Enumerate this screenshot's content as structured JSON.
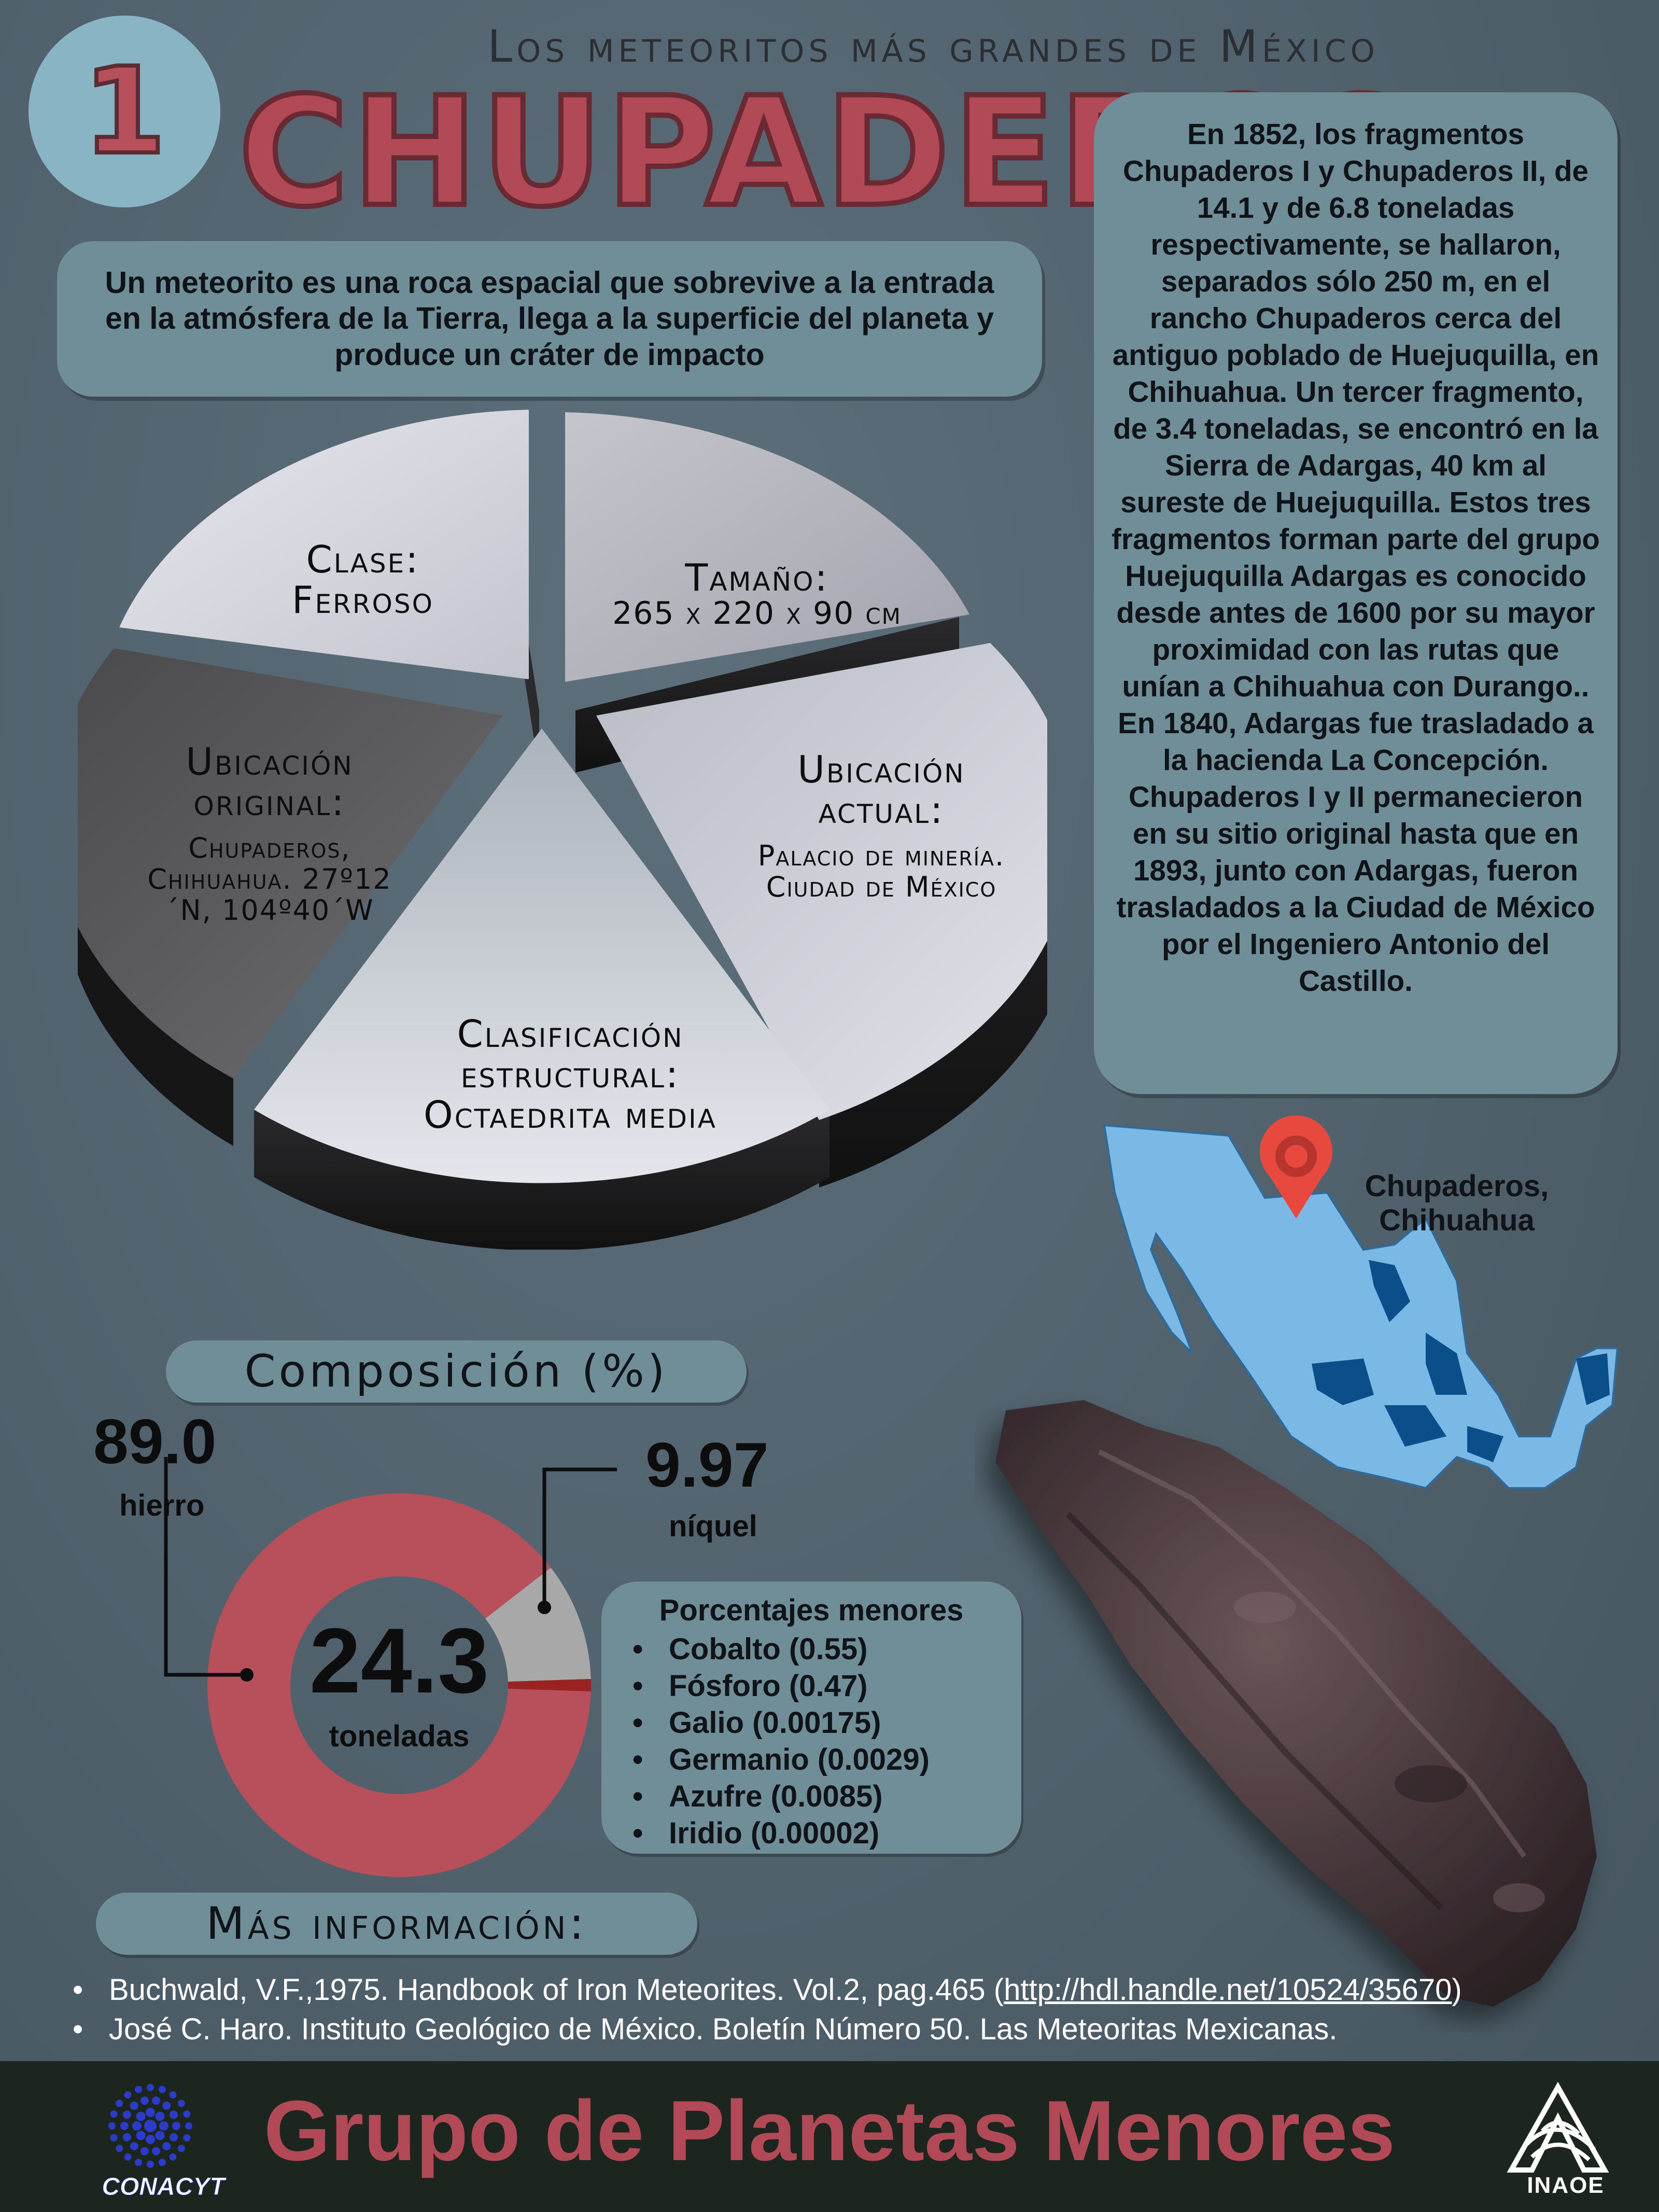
{
  "header": {
    "subtitle": "Los meteoritos más grandes de México",
    "rank": "1",
    "title": "CHUPADEROS"
  },
  "definition": "Un meteorito es una roca espacial que sobrevive a la entrada en la atmósfera de la Tierra, llega a la superficie del planeta y produce un cráter de impacto",
  "history": "En 1852, los fragmentos Chupaderos I y Chupaderos II, de 14.1 y de 6.8 toneladas respectivamente, se hallaron, separados sólo 250 m, en el rancho Chupaderos cerca del antiguo poblado de Huejuquilla, en Chihuahua. Un tercer fragmento, de 3.4 toneladas, se encontró en la Sierra de Adargas, 40 km al sureste de Huejuquilla. Estos tres fragmentos forman parte del grupo Huejuquilla Adargas es conocido desde antes de 1600 por su mayor proximidad con las rutas que unían a Chihuahua con Durango.. En 1840, Adargas fue trasladado a la hacienda La Concepción. Chupaderos I y II permanecieron en su sitio original hasta que en 1893, junto con Adargas, fueron trasladados a la Ciudad de México por el Ingeniero Antonio del Castillo.",
  "facts": {
    "clase": {
      "heading": "Clase:",
      "value": "Ferroso"
    },
    "tamano": {
      "heading": "Tamaño:",
      "value": "265 x 220 x 90 cm"
    },
    "ubicacion_actual": {
      "heading": "Ubicación actual:",
      "value": "Palacio de minería. Ciudad de México"
    },
    "clasificacion": {
      "heading": "Clasificación estructural:",
      "value": "Octaedrita media"
    },
    "ubicacion_original": {
      "heading": "Ubicación original:",
      "value": "Chupaderos, Chihuahua. 27º12´N, 104º40´W"
    }
  },
  "map": {
    "label": "Chupaderos, Chihuahua",
    "colors": {
      "land": "#7ab8e6",
      "highlight": "#0b4f8a",
      "pin": "#e8493f"
    }
  },
  "composition": {
    "title": "Composición (%)",
    "iron": {
      "value": "89.0",
      "label": "hierro"
    },
    "nickel": {
      "value": "9.97",
      "label": "níquel"
    },
    "mass": {
      "value": "24.3",
      "label": "toneladas"
    },
    "colors": {
      "iron": "#b8505c",
      "nickel": "#a8a8a8",
      "minor": "#9b2222"
    }
  },
  "chart_data": {
    "type": "pie",
    "categories": [
      "hierro",
      "níquel",
      ""
    ],
    "values": [
      89.0,
      9.97,
      1.03
    ],
    "title": "Composición (%)"
  },
  "minor": {
    "title": "Porcentajes menores",
    "items": [
      "Cobalto (0.55)",
      "Fósforo (0.47)",
      "Galio (0.00175)",
      "Germanio (0.0029)",
      "Azufre (0.0085)",
      "Iridio (0.00002)"
    ]
  },
  "more_info": {
    "title": "Más información:",
    "refs": [
      {
        "text": "Buchwald, V.F.,1975. Handbook of Iron Meteorites. Vol.2, pag.465 (",
        "url": "http://hdl.handle.net/10524/35670",
        "tail": ")"
      },
      {
        "text": "José C. Haro. Instituto Geológico de México. Boletín Número 50. Las Meteoritas Mexicanas.",
        "url": "",
        "tail": ""
      }
    ]
  },
  "footer": {
    "title": "Grupo de Planetas Menores",
    "conacyt": "CONACYT",
    "inaoe": "INAOE"
  }
}
